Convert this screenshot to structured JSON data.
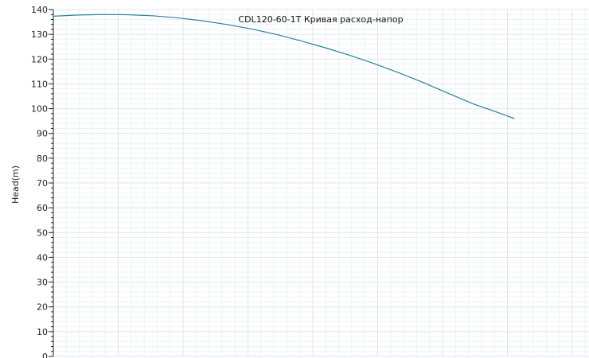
{
  "chart_data": {
    "type": "line",
    "title": "CDL120-60-1T Кривая расход-напор",
    "xlabel": "",
    "ylabel": "Head(m)",
    "ylim": [
      0,
      140
    ],
    "ytick_step": 10,
    "yticks": [
      "0",
      "10",
      "20",
      "30",
      "40",
      "50",
      "60",
      "70",
      "80",
      "90",
      "100",
      "110",
      "120",
      "130",
      "140"
    ],
    "xlim": [
      0,
      100
    ],
    "grid": true,
    "series": [
      {
        "color": "#2b7f9e",
        "x": [
          0,
          5,
          10,
          15,
          20,
          25,
          30,
          35,
          40,
          45,
          50,
          55,
          60,
          65,
          70,
          75,
          80,
          85,
          90,
          93.3
        ],
        "y": [
          137.3,
          137.8,
          138.0,
          137.9,
          137.5,
          136.7,
          135.5,
          134.0,
          132.2,
          130.0,
          127.4,
          124.6,
          121.5,
          118.1,
          114.4,
          110.4,
          106.1,
          101.9,
          98.4,
          96.0
        ]
      }
    ]
  },
  "colors": {
    "grid_major": "#dfe5ec",
    "grid_minor": "#eef2f6",
    "axis": "#222222"
  }
}
